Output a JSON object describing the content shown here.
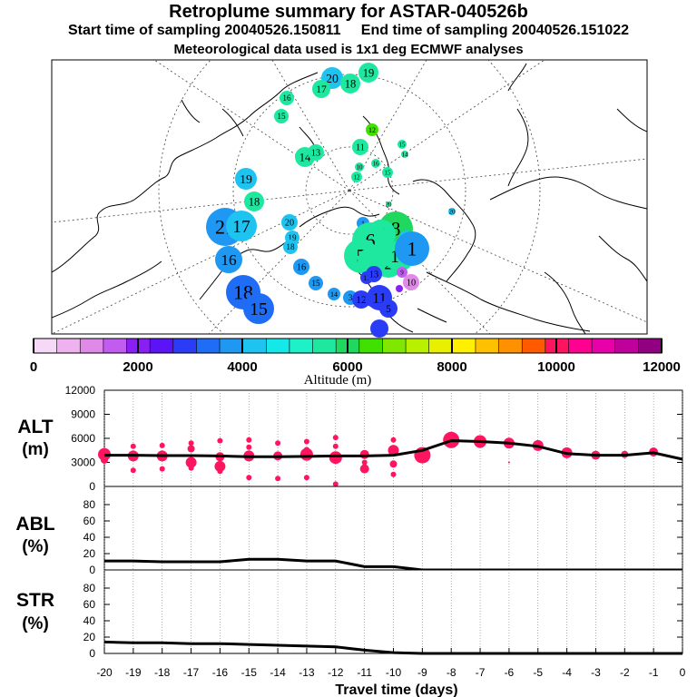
{
  "header": {
    "title": "Retroplume summary for ASTAR-040526b",
    "start": "Start time of sampling 20040526.150811",
    "end": "End time of sampling 20040526.151022",
    "met": "Meteorological data used is 1x1 deg ECMWF analyses"
  },
  "colorbar": {
    "colors": [
      "#f6d9f6",
      "#eeb3ee",
      "#e08ae8",
      "#c25bf0",
      "#8a1ff5",
      "#5a14f5",
      "#2a3cf5",
      "#1f6cf5",
      "#1e98f2",
      "#1ec3f0",
      "#14e8e8",
      "#1ef0c8",
      "#1ee8a0",
      "#20d860",
      "#40e000",
      "#80e800",
      "#b8f000",
      "#e8f000",
      "#fff000",
      "#ffc000",
      "#ff9000",
      "#ff5a00",
      "#ff1460",
      "#ff0090",
      "#e800a8",
      "#c0009a",
      "#900080"
    ],
    "tick_labels": [
      "0",
      "2000",
      "4000",
      "6000",
      "8000",
      "10000",
      "12000"
    ],
    "label": "Altitude (m)"
  },
  "map": {
    "markers": [
      {
        "label": "20",
        "size": 12,
        "color": "#1ec3f0"
      },
      {
        "label": "19",
        "size": 11,
        "color": "#1ee8a0"
      },
      {
        "label": "18",
        "size": 11,
        "color": "#1ee8a0"
      },
      {
        "label": "17",
        "size": 10,
        "color": "#1ee8a0"
      },
      {
        "label": "16",
        "size": 8,
        "color": "#1ee8a0"
      },
      {
        "label": "15",
        "size": 8,
        "color": "#1ee8a0"
      },
      {
        "label": "14",
        "size": 11,
        "color": "#1ee8a0"
      },
      {
        "label": "13",
        "size": 9,
        "color": "#1ee8a0"
      },
      {
        "label": "12",
        "size": 7,
        "color": "#40e000"
      },
      {
        "label": "11",
        "size": 9,
        "color": "#1ee8a0"
      },
      {
        "label": "15",
        "size": 5,
        "color": "#1ee8a0"
      },
      {
        "label": "14",
        "size": 4,
        "color": "#1ee8a0"
      },
      {
        "label": "10",
        "size": 5,
        "color": "#1ee8a0"
      },
      {
        "label": "16",
        "size": 5,
        "color": "#1ee8a0"
      },
      {
        "label": "15",
        "size": 6,
        "color": "#1ee8a0"
      },
      {
        "label": "12",
        "size": 6,
        "color": "#1ee8a0"
      },
      {
        "label": "20",
        "size": 4,
        "color": "#1ec3f0"
      },
      {
        "label": "20",
        "size": 3,
        "color": "#1ee8a0"
      },
      {
        "label": "19",
        "size": 12,
        "color": "#1ec3f0"
      },
      {
        "label": "18",
        "size": 11,
        "color": "#1ee8a0"
      },
      {
        "label": "21",
        "size": 21,
        "color": "#1e98f2"
      },
      {
        "label": "17",
        "size": 17,
        "color": "#1ec3f0"
      },
      {
        "label": "20",
        "size": 9,
        "color": "#1ec3f0"
      },
      {
        "label": "19",
        "size": 8,
        "color": "#1ec3f0"
      },
      {
        "label": "18",
        "size": 8,
        "color": "#1ec3f0"
      },
      {
        "label": "16",
        "size": 15,
        "color": "#1e98f2"
      },
      {
        "label": "16",
        "size": 9,
        "color": "#1e98f2"
      },
      {
        "label": "15",
        "size": 8,
        "color": "#1e98f2"
      },
      {
        "label": "14",
        "size": 7,
        "color": "#1e98f2"
      },
      {
        "label": "3",
        "size": 8,
        "color": "#1e98f2"
      },
      {
        "label": "18",
        "size": 19,
        "color": "#1f6cf5"
      },
      {
        "label": "15",
        "size": 17,
        "color": "#1f6cf5"
      },
      {
        "label": "1",
        "size": 7,
        "color": "#1e98f2"
      },
      {
        "label": "8",
        "size": 19,
        "color": "#20d860"
      },
      {
        "label": "7",
        "size": 16,
        "color": "#1ee8a0"
      },
      {
        "label": "6",
        "size": 20,
        "color": "#1ee8a0"
      },
      {
        "label": "9",
        "size": 8,
        "color": "#1ec3f0"
      },
      {
        "label": "5",
        "size": 19,
        "color": "#1ee8a0"
      },
      {
        "label": "4",
        "size": 16,
        "color": "#1ee8a0"
      },
      {
        "label": "3",
        "size": 16,
        "color": "#1ee8a0"
      },
      {
        "label": "2",
        "size": 16,
        "color": "#1ee8a0"
      },
      {
        "label": "10",
        "size": 17,
        "color": "#1ee8a0"
      },
      {
        "label": "1",
        "size": 19,
        "color": "#1e98f2"
      },
      {
        "label": "11",
        "size": 7,
        "color": "#2a3cf5"
      },
      {
        "label": "13",
        "size": 9,
        "color": "#2a3cf5"
      },
      {
        "label": "9",
        "size": 6,
        "color": "#c25bf0"
      },
      {
        "label": "10",
        "size": 9,
        "color": "#e08ae8"
      },
      {
        "label": "12",
        "size": 10,
        "color": "#2a3cf5"
      },
      {
        "label": "13",
        "size": 8,
        "color": "#2a3cf5"
      },
      {
        "label": "11",
        "size": 14,
        "color": "#2a3cf5"
      },
      {
        "label": "5",
        "size": 10,
        "color": "#2a3cf5"
      },
      {
        "label": "",
        "size": 4,
        "color": "#8a1ff5"
      },
      {
        "label": "",
        "size": 10,
        "color": "#2a3cf5"
      }
    ]
  },
  "chart_data": [
    {
      "type": "scatter",
      "name": "ALT",
      "ylabel": "ALT (m)",
      "ylim": [
        0,
        12000
      ],
      "yticks": [
        "0",
        "3000",
        "6000",
        "9000",
        "12000"
      ],
      "line_x": [
        -20,
        -19,
        -18,
        -17,
        -16,
        -15,
        -14,
        -13,
        -12,
        -11,
        -10,
        -9,
        -8,
        -7,
        -6,
        -5,
        -4,
        -3,
        -2,
        -1,
        0
      ],
      "line_y": [
        3900,
        3900,
        3850,
        3850,
        3800,
        3700,
        3700,
        3750,
        3800,
        3800,
        3900,
        4500,
        5700,
        5600,
        5400,
        5000,
        4100,
        3900,
        3900,
        4200,
        3400
      ],
      "dots": [
        {
          "x": -20,
          "y": 4000,
          "s": 7
        },
        {
          "x": -20,
          "y": 3300,
          "s": 4
        },
        {
          "x": -19,
          "y": 5000,
          "s": 3
        },
        {
          "x": -19,
          "y": 3800,
          "s": 6
        },
        {
          "x": -19,
          "y": 2000,
          "s": 3
        },
        {
          "x": -18,
          "y": 5100,
          "s": 3
        },
        {
          "x": -18,
          "y": 3800,
          "s": 6
        },
        {
          "x": -18,
          "y": 2200,
          "s": 3
        },
        {
          "x": -17,
          "y": 5400,
          "s": 3
        },
        {
          "x": -17,
          "y": 4700,
          "s": 4
        },
        {
          "x": -17,
          "y": 3000,
          "s": 6
        },
        {
          "x": -17,
          "y": 2300,
          "s": 3
        },
        {
          "x": -16,
          "y": 5700,
          "s": 3
        },
        {
          "x": -16,
          "y": 3700,
          "s": 5
        },
        {
          "x": -16,
          "y": 2500,
          "s": 6
        },
        {
          "x": -16,
          "y": 1900,
          "s": 3
        },
        {
          "x": -15,
          "y": 5800,
          "s": 3
        },
        {
          "x": -15,
          "y": 4900,
          "s": 3
        },
        {
          "x": -15,
          "y": 3800,
          "s": 6
        },
        {
          "x": -15,
          "y": 1100,
          "s": 3
        },
        {
          "x": -14,
          "y": 5400,
          "s": 3
        },
        {
          "x": -14,
          "y": 3800,
          "s": 5
        },
        {
          "x": -14,
          "y": 1000,
          "s": 3
        },
        {
          "x": -13,
          "y": 5600,
          "s": 3
        },
        {
          "x": -13,
          "y": 4600,
          "s": 3
        },
        {
          "x": -13,
          "y": 4000,
          "s": 7
        },
        {
          "x": -13,
          "y": 1100,
          "s": 3
        },
        {
          "x": -12,
          "y": 6100,
          "s": 3
        },
        {
          "x": -12,
          "y": 5000,
          "s": 3
        },
        {
          "x": -12,
          "y": 3600,
          "s": 7
        },
        {
          "x": -12,
          "y": 300,
          "s": 3
        },
        {
          "x": -11,
          "y": 4000,
          "s": 5
        },
        {
          "x": -11,
          "y": 3000,
          "s": 3
        },
        {
          "x": -11,
          "y": 2200,
          "s": 5
        },
        {
          "x": -10,
          "y": 5800,
          "s": 3
        },
        {
          "x": -10,
          "y": 4500,
          "s": 6
        },
        {
          "x": -10,
          "y": 2800,
          "s": 4
        },
        {
          "x": -10,
          "y": 1500,
          "s": 3
        },
        {
          "x": -9,
          "y": 3900,
          "s": 9
        },
        {
          "x": -8,
          "y": 5800,
          "s": 9
        },
        {
          "x": -7,
          "y": 5600,
          "s": 7
        },
        {
          "x": -6,
          "y": 5400,
          "s": 6
        },
        {
          "x": -6,
          "y": 3000,
          "s": 1
        },
        {
          "x": -5,
          "y": 5100,
          "s": 6
        },
        {
          "x": -4,
          "y": 4200,
          "s": 6
        },
        {
          "x": -3,
          "y": 3900,
          "s": 5
        },
        {
          "x": -2,
          "y": 4000,
          "s": 4
        },
        {
          "x": -1,
          "y": 4300,
          "s": 5
        }
      ]
    },
    {
      "type": "line",
      "name": "ABL",
      "ylabel": "ABL (%)",
      "ylim": [
        0,
        100
      ],
      "yticks": [
        "0",
        "20",
        "40",
        "60",
        "80"
      ],
      "x": [
        -20,
        -19,
        -18,
        -17,
        -16,
        -15,
        -14,
        -13,
        -12,
        -11,
        -10,
        -9,
        -8,
        -7,
        -6,
        -5,
        -4,
        -3,
        -2,
        -1,
        0
      ],
      "y": [
        11,
        11,
        10,
        10,
        10,
        13,
        13,
        11,
        11,
        4,
        4,
        0,
        0,
        0,
        0,
        0,
        0,
        0,
        0,
        0,
        0
      ]
    },
    {
      "type": "line",
      "name": "STR",
      "ylabel": "STR (%)",
      "ylim": [
        0,
        100
      ],
      "yticks": [
        "0",
        "20",
        "40",
        "60",
        "80"
      ],
      "xlabel": "Travel time (days)",
      "xticks": [
        "-20",
        "-19",
        "-18",
        "-17",
        "-16",
        "-15",
        "-14",
        "-13",
        "-12",
        "-11",
        "-10",
        "-9",
        "-8",
        "-7",
        "-6",
        "-5",
        "-4",
        "-3",
        "-2",
        "-1",
        "0"
      ],
      "x": [
        -20,
        -19,
        -18,
        -17,
        -16,
        -15,
        -14,
        -13,
        -12,
        -11,
        -10,
        -9,
        -8,
        -7,
        -6,
        -5,
        -4,
        -3,
        -2,
        -1,
        0
      ],
      "y": [
        14,
        13,
        13,
        12,
        12,
        11,
        10,
        9,
        8,
        4,
        1,
        0,
        0,
        0,
        0,
        0,
        0,
        0,
        0,
        0,
        0
      ]
    }
  ],
  "panel_labels": {
    "alt": [
      "ALT",
      "(m)"
    ],
    "abl": [
      "ABL",
      "(%)"
    ],
    "str": [
      "STR",
      "(%)"
    ]
  }
}
